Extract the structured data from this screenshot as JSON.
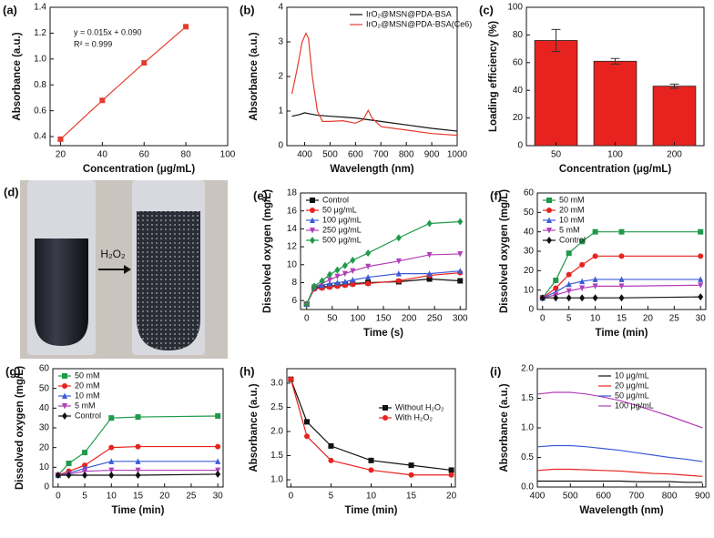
{
  "chart_data": [
    {
      "type": "line",
      "panel_label": "(a)",
      "xlabel": "Concentration (μg/mL)",
      "ylabel": "Absorbance (a.u.)",
      "x": [
        20,
        40,
        60,
        80
      ],
      "series": [
        {
          "name": null,
          "color": "#e53b2c",
          "marker": "square",
          "values": [
            0.38,
            0.68,
            0.97,
            1.25
          ]
        }
      ],
      "annotations": [
        "y = 0.015x + 0.090",
        "R² = 0.999"
      ],
      "xlim": [
        15,
        100
      ],
      "xticks": [
        20,
        40,
        60,
        80,
        100
      ],
      "ylim": [
        0.33,
        1.4
      ],
      "yticks": [
        0.4,
        0.6,
        0.8,
        {
          "value": 1.0,
          "label": "1.0"
        },
        1.2,
        1.4
      ],
      "legend": null
    },
    {
      "type": "line",
      "panel_label": "(b)",
      "xlabel": "Wavelength (nm)",
      "ylabel": "Absorbance (a.u.)",
      "series": [
        {
          "name": "IrO₂@MSN@PDA-BSA",
          "color": "#111111",
          "marker": null,
          "x": [
            350,
            380,
            400,
            420,
            450,
            500,
            600,
            700,
            800,
            900,
            1000
          ],
          "values": [
            0.85,
            0.9,
            0.95,
            0.92,
            0.88,
            0.85,
            0.8,
            0.7,
            0.6,
            0.5,
            0.42
          ]
        },
        {
          "name": "IrO₂@MSN@PDA-BSA(Ce6)",
          "color": "#e53b2c",
          "marker": null,
          "x": [
            350,
            370,
            390,
            405,
            415,
            430,
            450,
            470,
            500,
            550,
            600,
            630,
            650,
            665,
            700,
            800,
            900,
            1000
          ],
          "values": [
            1.5,
            2.2,
            3.0,
            3.25,
            3.1,
            2.0,
            1.0,
            0.7,
            0.7,
            0.72,
            0.65,
            0.75,
            1.02,
            0.8,
            0.55,
            0.45,
            0.35,
            0.3
          ]
        }
      ],
      "xlim": [
        330,
        1000
      ],
      "xticks": [
        400,
        500,
        600,
        700,
        800,
        900,
        1000
      ],
      "ylim": [
        0,
        4
      ],
      "yticks": [
        0,
        1,
        2,
        3,
        4
      ],
      "legend": "upper right"
    },
    {
      "type": "bar",
      "panel_label": "(c)",
      "xlabel": "Concentration (μg/mL)",
      "ylabel": "Loading efficiency (%)",
      "categories": [
        "50",
        "100",
        "200"
      ],
      "values": [
        76,
        61,
        43
      ],
      "errors": [
        8,
        2,
        1.5
      ],
      "color": "#e8231f",
      "ylim": [
        0,
        100
      ],
      "yticks": [
        0,
        20,
        40,
        60,
        80,
        100
      ]
    },
    {
      "type": "line",
      "panel_label": "(e)",
      "xlabel": "Time (s)",
      "ylabel": "Dissolved oxygen   (mg/L)",
      "x": [
        0,
        15,
        30,
        45,
        60,
        75,
        90,
        120,
        180,
        240,
        300
      ],
      "series": [
        {
          "name": "Control",
          "color": "#111111",
          "marker": "square",
          "values": [
            5.6,
            7.4,
            7.5,
            7.6,
            7.7,
            7.8,
            7.9,
            8.0,
            8.1,
            8.4,
            8.2
          ]
        },
        {
          "name": "50 μg/mL",
          "color": "#e8231f",
          "marker": "circle",
          "values": [
            5.6,
            7.3,
            7.4,
            7.5,
            7.6,
            7.7,
            7.8,
            7.9,
            8.2,
            8.8,
            9.1
          ]
        },
        {
          "name": "100 μg/mL",
          "color": "#3b5bd6",
          "marker": "triangle-up",
          "values": [
            5.6,
            7.5,
            7.7,
            7.9,
            8.0,
            8.1,
            8.3,
            8.6,
            9.0,
            9.0,
            9.3
          ]
        },
        {
          "name": "250 μg/mL",
          "color": "#b13fb8",
          "marker": "triangle-down",
          "values": [
            5.6,
            7.5,
            7.9,
            8.3,
            8.7,
            9.0,
            9.3,
            9.8,
            10.4,
            11.1,
            11.2
          ]
        },
        {
          "name": "500 μg/mL",
          "color": "#1e9a4a",
          "marker": "diamond",
          "values": [
            5.6,
            7.6,
            8.2,
            8.9,
            9.4,
            9.9,
            10.5,
            11.3,
            13.0,
            14.6,
            14.8
          ]
        }
      ],
      "xlim": [
        -12,
        312
      ],
      "xticks": [
        0,
        50,
        100,
        150,
        200,
        250,
        300
      ],
      "ylim": [
        5,
        18
      ],
      "yticks": [
        6,
        8,
        10,
        12,
        14,
        16,
        18
      ],
      "legend": "upper left"
    },
    {
      "type": "line",
      "panel_label": "(f)",
      "xlabel": "Time (min)",
      "ylabel": "Dissolved oxygen   (mg/L)",
      "x": [
        0,
        2.5,
        5,
        7.5,
        10,
        15,
        30
      ],
      "series": [
        {
          "name": "50 mM",
          "color": "#1e9a4a",
          "marker": "square",
          "values": [
            6,
            15,
            29,
            35,
            40,
            40,
            40
          ]
        },
        {
          "name": "20 mM",
          "color": "#e8231f",
          "marker": "circle",
          "values": [
            6,
            11,
            18,
            23,
            27.5,
            27.5,
            27.5
          ]
        },
        {
          "name": "10 mM",
          "color": "#3b5bd6",
          "marker": "triangle-up",
          "values": [
            6,
            9,
            13,
            14.5,
            15.5,
            15.5,
            15.5
          ]
        },
        {
          "name": "5  mM",
          "color": "#b13fb8",
          "marker": "triangle-down",
          "values": [
            6,
            7.5,
            9.5,
            11,
            12,
            12,
            12.5
          ]
        },
        {
          "name": "Control",
          "color": "#111111",
          "marker": "diamond",
          "values": [
            6,
            6,
            6,
            6,
            6,
            6,
            6.5
          ]
        }
      ],
      "xlim": [
        -1,
        31
      ],
      "xticks": [
        0,
        5,
        10,
        15,
        20,
        25,
        30
      ],
      "ylim": [
        0,
        60
      ],
      "yticks": [
        0,
        10,
        20,
        30,
        40,
        50,
        60
      ],
      "legend": "upper left"
    },
    {
      "type": "line",
      "panel_label": "(g)",
      "xlabel": "Time (min)",
      "ylabel": "Dissolved oxygen   (mg/L)",
      "x": [
        0,
        2,
        5,
        10,
        15,
        30
      ],
      "series": [
        {
          "name": "50 mM",
          "color": "#1e9a4a",
          "marker": "square",
          "values": [
            6,
            12,
            17.5,
            35,
            35.5,
            36
          ]
        },
        {
          "name": "20 mM",
          "color": "#e8231f",
          "marker": "circle",
          "values": [
            6,
            8,
            11,
            20,
            20.5,
            20.5
          ]
        },
        {
          "name": "10 mM",
          "color": "#3b5bd6",
          "marker": "triangle-up",
          "values": [
            6,
            7,
            9.5,
            13,
            13,
            13
          ]
        },
        {
          "name": "5  mM",
          "color": "#b13fb8",
          "marker": "triangle-down",
          "values": [
            6,
            6.5,
            8,
            8.5,
            8.5,
            8.5
          ]
        },
        {
          "name": "Control",
          "color": "#111111",
          "marker": "diamond",
          "values": [
            6,
            6,
            6,
            6,
            6,
            6.5
          ]
        }
      ],
      "xlim": [
        -1,
        31
      ],
      "xticks": [
        0,
        5,
        10,
        15,
        20,
        25,
        30
      ],
      "ylim": [
        0,
        60
      ],
      "yticks": [
        0,
        10,
        20,
        30,
        40,
        50,
        60
      ],
      "legend": "upper left"
    },
    {
      "type": "line",
      "panel_label": "(h)",
      "xlabel": "Time (min)",
      "ylabel": "Absorbance (a.u.)",
      "x": [
        0,
        2,
        5,
        10,
        15,
        20
      ],
      "series": [
        {
          "name": "Without H₂O₂",
          "color": "#111111",
          "marker": "square",
          "values": [
            3.08,
            2.2,
            1.7,
            1.4,
            1.3,
            1.2
          ]
        },
        {
          "name": "With H₂O₂",
          "color": "#e8231f",
          "marker": "circle",
          "values": [
            3.08,
            1.9,
            1.4,
            1.2,
            1.1,
            1.1
          ]
        }
      ],
      "xlim": [
        -0.5,
        20.5
      ],
      "xticks": [
        0,
        5,
        10,
        15,
        20
      ],
      "ylim": [
        0.85,
        3.3
      ],
      "yticks": [
        {
          "value": 1.0,
          "label": "1.0"
        },
        1.5,
        {
          "value": 2.0,
          "label": "2.0"
        },
        2.5,
        {
          "value": 3.0,
          "label": "3.0"
        }
      ],
      "legend": "center right"
    },
    {
      "type": "line",
      "panel_label": "(i)",
      "xlabel": "Wavelength (nm)",
      "ylabel": "Absorbance (a.u.)",
      "x": [
        400,
        450,
        500,
        550,
        600,
        650,
        700,
        750,
        800,
        850,
        900
      ],
      "series": [
        {
          "name": "10  μg/mL",
          "color": "#111111",
          "marker": null,
          "values": [
            0.1,
            0.1,
            0.1,
            0.1,
            0.1,
            0.1,
            0.09,
            0.09,
            0.09,
            0.08,
            0.08
          ]
        },
        {
          "name": "20  μg/mL",
          "color": "#e8231f",
          "marker": null,
          "values": [
            0.28,
            0.3,
            0.3,
            0.29,
            0.28,
            0.27,
            0.25,
            0.23,
            0.22,
            0.2,
            0.18
          ]
        },
        {
          "name": "50  μg/mL",
          "color": "#3b5bd6",
          "marker": null,
          "values": [
            0.68,
            0.7,
            0.7,
            0.68,
            0.65,
            0.62,
            0.58,
            0.54,
            0.5,
            0.47,
            0.43
          ]
        },
        {
          "name": "100  μg/mL",
          "color": "#b13fb8",
          "marker": null,
          "values": [
            1.57,
            1.6,
            1.6,
            1.57,
            1.52,
            1.46,
            1.38,
            1.29,
            1.2,
            1.1,
            1.0
          ]
        }
      ],
      "xlim": [
        400,
        910
      ],
      "xticks": [
        400,
        500,
        600,
        700,
        800,
        900
      ],
      "ylim": [
        0,
        2
      ],
      "yticks": [
        {
          "value": 0,
          "label": "0.0"
        },
        0.5,
        {
          "value": 1,
          "label": "1.0"
        },
        1.5,
        {
          "value": 2,
          "label": "2.0"
        }
      ],
      "legend": "upper right"
    }
  ],
  "photo": {
    "panel_label": "(d)",
    "arrow_label": "H₂O₂"
  }
}
